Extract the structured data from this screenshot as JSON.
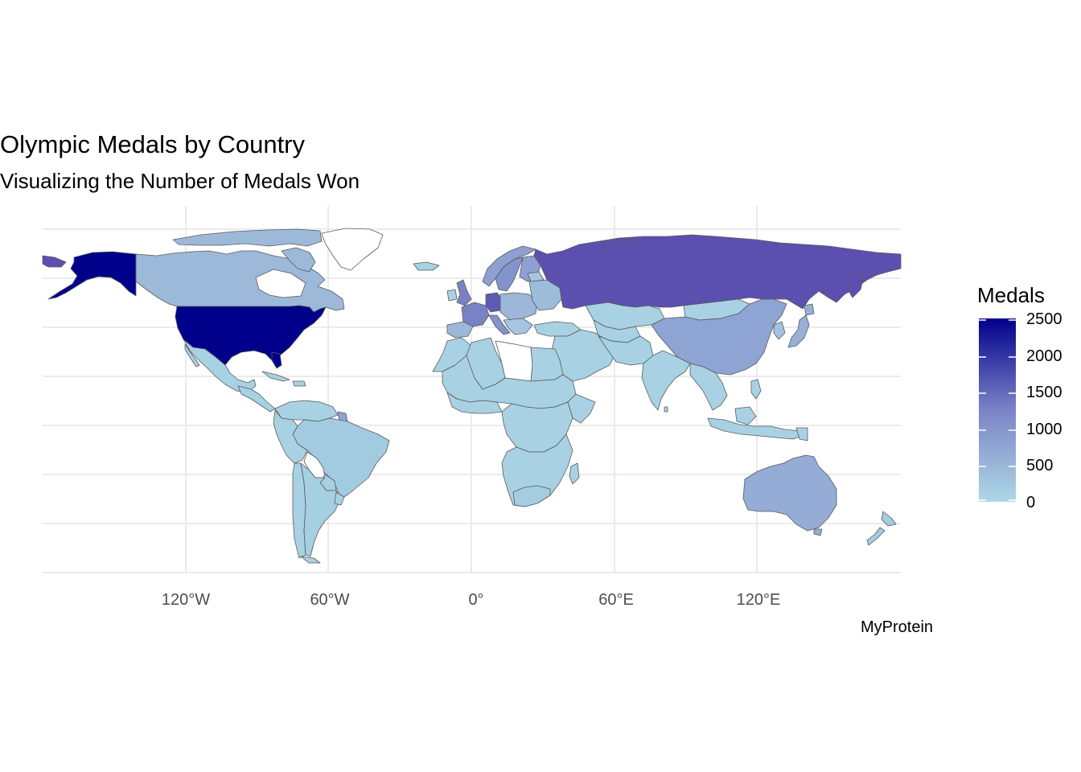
{
  "title": "Olympic Medals by Country",
  "subtitle": "Visualizing the Number of Medals Won",
  "caption": "MyProtein",
  "legend": {
    "title": "Medals",
    "ticks": [
      "2500",
      "2000",
      "1500",
      "1000",
      "500",
      "0"
    ],
    "color_low": "#add8e6",
    "color_high": "#00008b"
  },
  "axis": {
    "x_ticks": [
      "120°W",
      "60°W",
      "0°",
      "60°E",
      "120°E"
    ]
  },
  "colors": {
    "border": "#595959",
    "grid": "#ebebeb",
    "background": "#ffffff"
  },
  "chart_data": {
    "type": "heatmap",
    "subtype": "choropleth",
    "title": "Olympic Medals by Country",
    "subtitle": "Visualizing the Number of Medals Won",
    "legend_title": "Medals",
    "scale": {
      "min": 0,
      "max": 2500,
      "breaks": [
        0,
        500,
        1000,
        1500,
        2000,
        2500
      ]
    },
    "x_ticks": [
      "120°W",
      "60°W",
      "0°",
      "60°E",
      "120°E"
    ],
    "grid": true,
    "legend_position": "right",
    "regions": [
      {
        "name": "United States",
        "medals": 2500
      },
      {
        "name": "Russia",
        "medals": 1500
      },
      {
        "name": "Germany",
        "medals": 1200
      },
      {
        "name": "United Kingdom",
        "medals": 900
      },
      {
        "name": "France",
        "medals": 900
      },
      {
        "name": "Italy",
        "medals": 700
      },
      {
        "name": "China",
        "medals": 650
      },
      {
        "name": "Australia",
        "medals": 550
      },
      {
        "name": "Sweden",
        "medals": 650
      },
      {
        "name": "Canada",
        "medals": 350
      },
      {
        "name": "Mexico",
        "medals": 50
      },
      {
        "name": "Brazil",
        "medals": 150
      },
      {
        "name": "Argentina",
        "medals": 75
      },
      {
        "name": "Japan",
        "medals": 500
      },
      {
        "name": "India",
        "medals": 35
      },
      {
        "name": "Kazakhstan",
        "medals": 70
      },
      {
        "name": "Mongolia",
        "medals": 30
      },
      {
        "name": "South Africa",
        "medals": 90
      },
      {
        "name": "Egypt",
        "medals": 35
      },
      {
        "name": "Algeria",
        "medals": 20
      }
    ]
  }
}
